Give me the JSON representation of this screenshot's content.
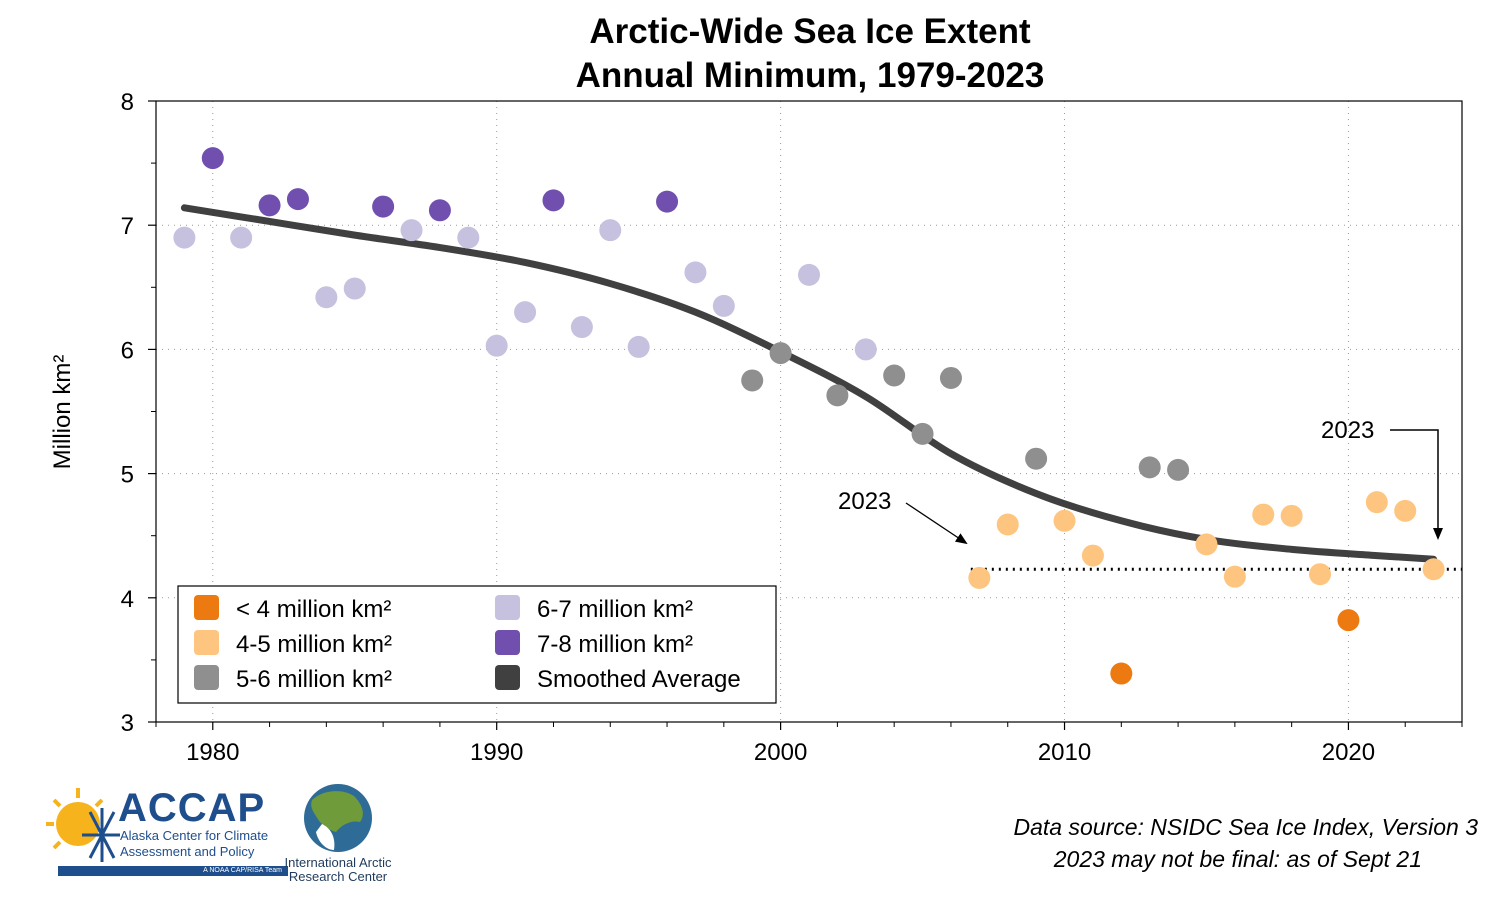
{
  "title_line1": "Arctic-Wide Sea Ice Extent",
  "title_line2": "Annual Minimum, 1979-2023",
  "source_line1": "Data source: NSIDC Sea Ice Index, Version 3",
  "source_line2": "2023 may not be final: as of Sept 21",
  "logos": {
    "accap_name": "ACCAP",
    "accap_line1": "Alaska Center for Climate",
    "accap_line2": "Assessment and Policy",
    "accap_tag": "A NOAA CAP/RISA Team",
    "iarc_line1": "International Arctic",
    "iarc_line2": "Research Center"
  },
  "annotations": {
    "label_left": "2023",
    "label_right": "2023"
  },
  "colors": {
    "lt4": "#ec7a10",
    "4to5": "#fdc57f",
    "5to6": "#8f8f8f",
    "6to7": "#c5c1df",
    "7to8": "#704fae",
    "smooth": "#404040"
  },
  "chart_data": {
    "type": "scatter",
    "title": "Arctic-Wide Sea Ice Extent Annual Minimum, 1979-2023",
    "xlabel": "",
    "ylabel": "Million km²",
    "xlim": [
      1978,
      2024
    ],
    "ylim": [
      3,
      8
    ],
    "xticks": [
      1980,
      1990,
      2000,
      2010,
      2020
    ],
    "yticks": [
      3,
      4,
      5,
      6,
      7,
      8
    ],
    "grid": true,
    "legend_position": "bottom-left",
    "legend": [
      {
        "key": "lt4",
        "label": "< 4 million km²"
      },
      {
        "key": "4to5",
        "label": "4-5 million km²"
      },
      {
        "key": "5to6",
        "label": "5-6 million km²"
      },
      {
        "key": "6to7",
        "label": "6-7 million km²"
      },
      {
        "key": "7to8",
        "label": "7-8 million km²"
      },
      {
        "key": "smooth",
        "label": "Smoothed Average"
      }
    ],
    "points": [
      {
        "x": 1979,
        "y": 6.9
      },
      {
        "x": 1980,
        "y": 7.54
      },
      {
        "x": 1981,
        "y": 6.9
      },
      {
        "x": 1982,
        "y": 7.16
      },
      {
        "x": 1983,
        "y": 7.21
      },
      {
        "x": 1984,
        "y": 6.42
      },
      {
        "x": 1985,
        "y": 6.49
      },
      {
        "x": 1986,
        "y": 7.15
      },
      {
        "x": 1987,
        "y": 6.96
      },
      {
        "x": 1988,
        "y": 7.12
      },
      {
        "x": 1989,
        "y": 6.9
      },
      {
        "x": 1990,
        "y": 6.03
      },
      {
        "x": 1991,
        "y": 6.3
      },
      {
        "x": 1992,
        "y": 7.2
      },
      {
        "x": 1993,
        "y": 6.18
      },
      {
        "x": 1994,
        "y": 6.96
      },
      {
        "x": 1995,
        "y": 6.02
      },
      {
        "x": 1996,
        "y": 7.19
      },
      {
        "x": 1997,
        "y": 6.62
      },
      {
        "x": 1998,
        "y": 6.35
      },
      {
        "x": 1999,
        "y": 5.75
      },
      {
        "x": 2000,
        "y": 5.97
      },
      {
        "x": 2001,
        "y": 6.6
      },
      {
        "x": 2002,
        "y": 5.63
      },
      {
        "x": 2003,
        "y": 6.0
      },
      {
        "x": 2004,
        "y": 5.79
      },
      {
        "x": 2005,
        "y": 5.32
      },
      {
        "x": 2006,
        "y": 5.77
      },
      {
        "x": 2007,
        "y": 4.16
      },
      {
        "x": 2008,
        "y": 4.59
      },
      {
        "x": 2009,
        "y": 5.12
      },
      {
        "x": 2010,
        "y": 4.62
      },
      {
        "x": 2011,
        "y": 4.34
      },
      {
        "x": 2012,
        "y": 3.39
      },
      {
        "x": 2013,
        "y": 5.05
      },
      {
        "x": 2014,
        "y": 5.03
      },
      {
        "x": 2015,
        "y": 4.43
      },
      {
        "x": 2016,
        "y": 4.17
      },
      {
        "x": 2017,
        "y": 4.67
      },
      {
        "x": 2018,
        "y": 4.66
      },
      {
        "x": 2019,
        "y": 4.19
      },
      {
        "x": 2020,
        "y": 3.82
      },
      {
        "x": 2021,
        "y": 4.77
      },
      {
        "x": 2022,
        "y": 4.7
      },
      {
        "x": 2023,
        "y": 4.23
      }
    ],
    "smoothed_average": {
      "x": [
        1979,
        1982,
        1985,
        1988,
        1991,
        1994,
        1997,
        2000,
        2003,
        2006,
        2009,
        2012,
        2015,
        2018,
        2021,
        2023
      ],
      "y": [
        7.14,
        7.03,
        6.92,
        6.82,
        6.7,
        6.53,
        6.3,
        5.98,
        5.62,
        5.16,
        4.84,
        4.62,
        4.47,
        4.39,
        4.34,
        4.31
      ]
    },
    "reference_line": {
      "y": 4.23,
      "x_start": 2006.7,
      "x_end": 2024
    }
  }
}
